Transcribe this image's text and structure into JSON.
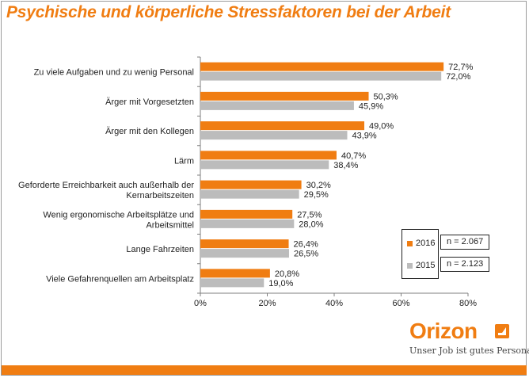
{
  "title": "Psychische und körperliche Stressfaktoren bei der Arbeit",
  "chart_data": {
    "type": "bar",
    "orientation": "horizontal",
    "categories": [
      "Zu viele Aufgaben und zu wenig Personal",
      "Ärger mit Vorgesetzten",
      "Ärger mit den Kollegen",
      "Lärm",
      "Geforderte Erreichbarkeit auch außerhalb der Kernarbeitszeiten",
      "Wenig ergonomische Arbeitsplätze und Arbeitsmittel",
      "Lange Fahrzeiten",
      "Viele Gefahrenquellen am Arbeitsplatz"
    ],
    "category_lines": [
      [
        "Zu viele Aufgaben und zu wenig Personal"
      ],
      [
        "Ärger mit Vorgesetzten"
      ],
      [
        "Ärger mit den Kollegen"
      ],
      [
        "Lärm"
      ],
      [
        "Geforderte Erreichbarkeit auch außerhalb der",
        "Kernarbeitszeiten"
      ],
      [
        "Wenig ergonomische Arbeitsplätze und",
        "Arbeitsmittel"
      ],
      [
        "Lange Fahrzeiten"
      ],
      [
        "Viele Gefahrenquellen am Arbeitsplatz"
      ]
    ],
    "series": [
      {
        "name": "2016",
        "color": "#f07d12",
        "values": [
          72.7,
          50.3,
          49.0,
          40.7,
          30.2,
          27.5,
          26.4,
          20.8
        ],
        "labels": [
          "72,7%",
          "50,3%",
          "49,0%",
          "40,7%",
          "30,2%",
          "27,5%",
          "26,4%",
          "20,8%"
        ]
      },
      {
        "name": "2015",
        "color": "#bcbcbc",
        "values": [
          72.0,
          45.9,
          43.9,
          38.4,
          29.5,
          28.0,
          26.5,
          19.0
        ],
        "labels": [
          "72,0%",
          "45,9%",
          "43,9%",
          "38,4%",
          "29,5%",
          "28,0%",
          "26,5%",
          "19,0%"
        ]
      }
    ],
    "xlim": [
      0,
      80
    ],
    "xticks": [
      0,
      20,
      40,
      60,
      80
    ],
    "xtick_labels": [
      "0%",
      "20%",
      "40%",
      "60%",
      "80%"
    ],
    "grid": false,
    "legend": {
      "position": "bottom-right",
      "entries": [
        "2016",
        "2015"
      ]
    },
    "annotations": [
      "n = 2.067",
      "n = 2.123"
    ]
  },
  "logo": {
    "name": "Orizon",
    "slogan": "Unser Job ist gutes Personal",
    "color": "#f07d12"
  }
}
